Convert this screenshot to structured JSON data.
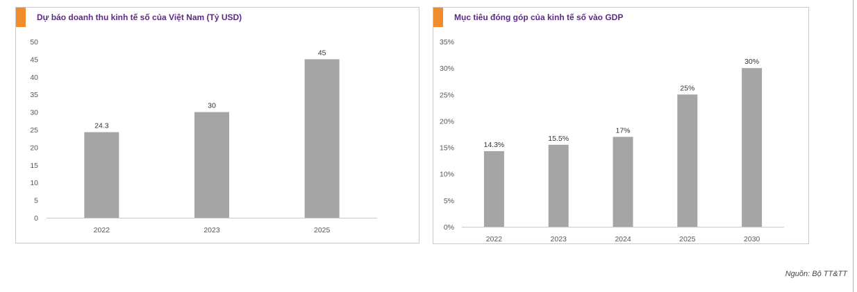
{
  "colors": {
    "accent": "#f08c2c",
    "bar": "#a5a5a5",
    "title": "#5b2a86",
    "axis": "#c9c9c9"
  },
  "source": "Nguồn: Bộ TT&TT",
  "chart_data": [
    {
      "type": "bar",
      "title": "Dự báo doanh thu kinh tế số của Việt Nam (Tỷ USD)",
      "categories": [
        "2022",
        "2023",
        "2025"
      ],
      "values": [
        24.3,
        30,
        45
      ],
      "value_labels": [
        "24.3",
        "30",
        "45"
      ],
      "ylim": [
        0,
        50
      ],
      "yticks": [
        0,
        5,
        10,
        15,
        20,
        25,
        30,
        35,
        40,
        45,
        50
      ],
      "ytick_labels": [
        "0",
        "5",
        "10",
        "15",
        "20",
        "25",
        "30",
        "35",
        "40",
        "45",
        "50"
      ],
      "grid": false,
      "legend": "none"
    },
    {
      "type": "bar",
      "title": "Mục tiêu đóng góp của kinh tế số vào GDP",
      "categories": [
        "2022",
        "2023",
        "2024",
        "2025",
        "2030"
      ],
      "values": [
        14.3,
        15.5,
        17,
        25,
        30
      ],
      "value_labels": [
        "14.3%",
        "15.5%",
        "17%",
        "25%",
        "30%"
      ],
      "ylim": [
        0,
        35
      ],
      "yticks": [
        0,
        5,
        10,
        15,
        20,
        25,
        30,
        35
      ],
      "ytick_labels": [
        "0%",
        "5%",
        "10%",
        "15%",
        "20%",
        "25%",
        "30%",
        "35%"
      ],
      "grid": false,
      "legend": "none"
    }
  ]
}
